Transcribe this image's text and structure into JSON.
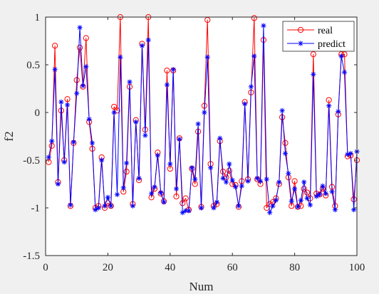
{
  "chart_data": {
    "type": "line",
    "title": "",
    "xlabel": "Num",
    "ylabel": "f2",
    "xlim": [
      0,
      100
    ],
    "ylim": [
      -1.5,
      1
    ],
    "xticks": [
      "0",
      "20",
      "40",
      "60",
      "80",
      "100"
    ],
    "yticks": [
      "-1.5",
      "-1",
      "-0.5",
      "0",
      "0.5",
      "1"
    ],
    "grid": false,
    "legend": "top-right",
    "x": [
      1,
      2,
      3,
      4,
      5,
      6,
      7,
      8,
      9,
      10,
      11,
      12,
      13,
      14,
      15,
      16,
      17,
      18,
      19,
      20,
      21,
      22,
      23,
      24,
      25,
      26,
      27,
      28,
      29,
      30,
      31,
      32,
      33,
      34,
      35,
      36,
      37,
      38,
      39,
      40,
      41,
      42,
      43,
      44,
      45,
      46,
      47,
      48,
      49,
      50,
      51,
      52,
      53,
      54,
      55,
      56,
      57,
      58,
      59,
      60,
      61,
      62,
      63,
      64,
      65,
      66,
      67,
      68,
      69,
      70,
      71,
      72,
      73,
      74,
      75,
      76,
      77,
      78,
      79,
      80,
      81,
      82,
      83,
      84,
      85,
      86,
      87,
      88,
      89,
      90,
      91,
      92,
      93,
      94,
      95,
      96,
      97,
      98,
      99,
      100
    ],
    "series": [
      {
        "name": "real",
        "color": "#ff0000",
        "marker": "circle",
        "values": [
          -0.52,
          -0.35,
          0.7,
          -0.73,
          0.02,
          -0.5,
          0.14,
          -0.98,
          -0.32,
          0.34,
          0.68,
          0.27,
          0.78,
          -0.1,
          -0.38,
          -1.0,
          -0.98,
          -0.47,
          -1.0,
          -0.95,
          -0.98,
          0.06,
          0.02,
          1.0,
          -0.83,
          -0.62,
          0.27,
          -0.96,
          -0.08,
          -0.71,
          0.72,
          -0.18,
          1.0,
          -0.89,
          -0.8,
          -0.42,
          -0.85,
          -0.93,
          0.44,
          -0.59,
          0.44,
          -0.88,
          -0.27,
          -0.95,
          -0.9,
          -1.02,
          -0.59,
          -0.75,
          -0.2,
          -0.99,
          0.07,
          0.97,
          -0.54,
          -0.98,
          -0.96,
          -0.3,
          -0.62,
          -0.68,
          -0.61,
          -0.75,
          -0.76,
          -0.99,
          -0.72,
          0.11,
          -0.7,
          0.21,
          0.99,
          -0.7,
          -0.75,
          0.76,
          -1.0,
          -0.96,
          -0.94,
          -0.9,
          -0.75,
          -0.05,
          -0.32,
          -0.68,
          -0.98,
          -0.72,
          -0.99,
          -0.98,
          -0.8,
          -0.84,
          -0.9,
          0.61,
          -0.85,
          -0.86,
          -0.8,
          -0.87,
          0.13,
          -0.78,
          -0.98,
          -0.02,
          0.61,
          0.61,
          -0.46,
          -0.45,
          -0.91,
          -0.5
        ]
      },
      {
        "name": "predict",
        "color": "#0000ff",
        "marker": "star",
        "values": [
          -0.47,
          -0.3,
          0.45,
          -0.75,
          0.11,
          -0.52,
          0.08,
          -0.97,
          -0.31,
          0.2,
          0.89,
          0.28,
          0.48,
          -0.07,
          -0.32,
          -1.02,
          -1.0,
          -0.5,
          -0.98,
          -0.89,
          -0.98,
          0.0,
          -0.86,
          0.58,
          -0.79,
          -0.53,
          0.32,
          -0.98,
          -0.1,
          -0.69,
          0.7,
          -0.24,
          0.76,
          -0.85,
          -0.78,
          -0.45,
          -0.84,
          -0.94,
          0.29,
          -0.54,
          0.45,
          -0.8,
          -0.28,
          -1.05,
          -1.03,
          -1.03,
          -0.58,
          -0.7,
          -0.12,
          -1.0,
          0.0,
          0.58,
          -0.58,
          -1.0,
          -0.94,
          -0.27,
          -0.69,
          -0.73,
          -0.54,
          -0.71,
          -0.78,
          -0.98,
          -0.77,
          0.09,
          -0.72,
          0.27,
          0.59,
          -0.69,
          -0.72,
          0.91,
          -0.7,
          -1.05,
          -0.98,
          -0.92,
          -0.73,
          0.02,
          -0.43,
          -0.64,
          -0.93,
          -0.8,
          -0.99,
          -0.92,
          -0.73,
          -0.9,
          -0.97,
          0.4,
          -0.88,
          -0.86,
          -0.77,
          -0.85,
          0.07,
          -0.83,
          -1.02,
          0.01,
          0.59,
          0.42,
          -0.44,
          -0.43,
          -1.02,
          -0.41
        ]
      }
    ]
  }
}
